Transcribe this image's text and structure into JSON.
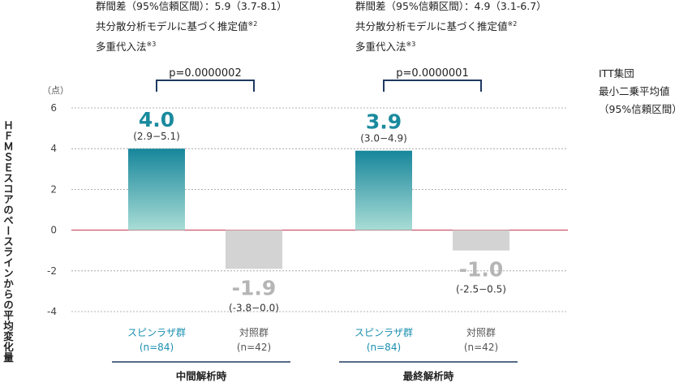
{
  "annotations": {
    "interim": {
      "diff": "群間差（95%信頼区間）：5.9（3.7-8.1）",
      "model": "共分散分析モデルに基づく推定値",
      "model_mark": "※2",
      "imputation": "多重代入法",
      "imputation_mark": "※3"
    },
    "final": {
      "diff": "群間差（95%信頼区間）：4.9（3.1-6.7）",
      "model": "共分散分析モデルに基づく推定値",
      "model_mark": "※2",
      "imputation": "多重代入法",
      "imputation_mark": "※3"
    }
  },
  "legend": {
    "line1": "ITT集団",
    "line2": "最小二乗平均値",
    "line3": "（95%信頼区間）"
  },
  "chart_data": {
    "type": "bar",
    "ylabel": "ＨＦＭＳＥスコアのベースラインからの平均変化量",
    "yunit": "（点）",
    "ylim": [
      -4,
      6
    ],
    "yticks": [
      6,
      4,
      2,
      0,
      -2,
      -4
    ],
    "grid": true,
    "groups": [
      {
        "label": "中間解析時",
        "p_value": "p=0.0000002",
        "bars": [
          {
            "name": "スピンラザ群",
            "n": "(n=84)",
            "value": 4.0,
            "value_label": "4.0",
            "ci": [
              2.9,
              5.1
            ],
            "ci_label": "(2.9−5.1)",
            "color": "#1a8a9e"
          },
          {
            "name": "対照群",
            "n": "(n=42)",
            "value": -1.9,
            "value_label": "-1.9",
            "ci": [
              -3.8,
              0.0
            ],
            "ci_label": "(-3.8−0.0)",
            "color": "#d3d3d3"
          }
        ]
      },
      {
        "label": "最終解析時",
        "p_value": "p=0.0000001",
        "bars": [
          {
            "name": "スピンラザ群",
            "n": "(n=84)",
            "value": 3.9,
            "value_label": "3.9",
            "ci": [
              3.0,
              4.9
            ],
            "ci_label": "(3.0−4.9)",
            "color": "#1a8a9e"
          },
          {
            "name": "対照群",
            "n": "(n=42)",
            "value": -1.0,
            "value_label": "-1.0",
            "ci": [
              -2.5,
              0.5
            ],
            "ci_label": "(-2.5−0.5)",
            "color": "#d3d3d3"
          }
        ]
      }
    ]
  }
}
